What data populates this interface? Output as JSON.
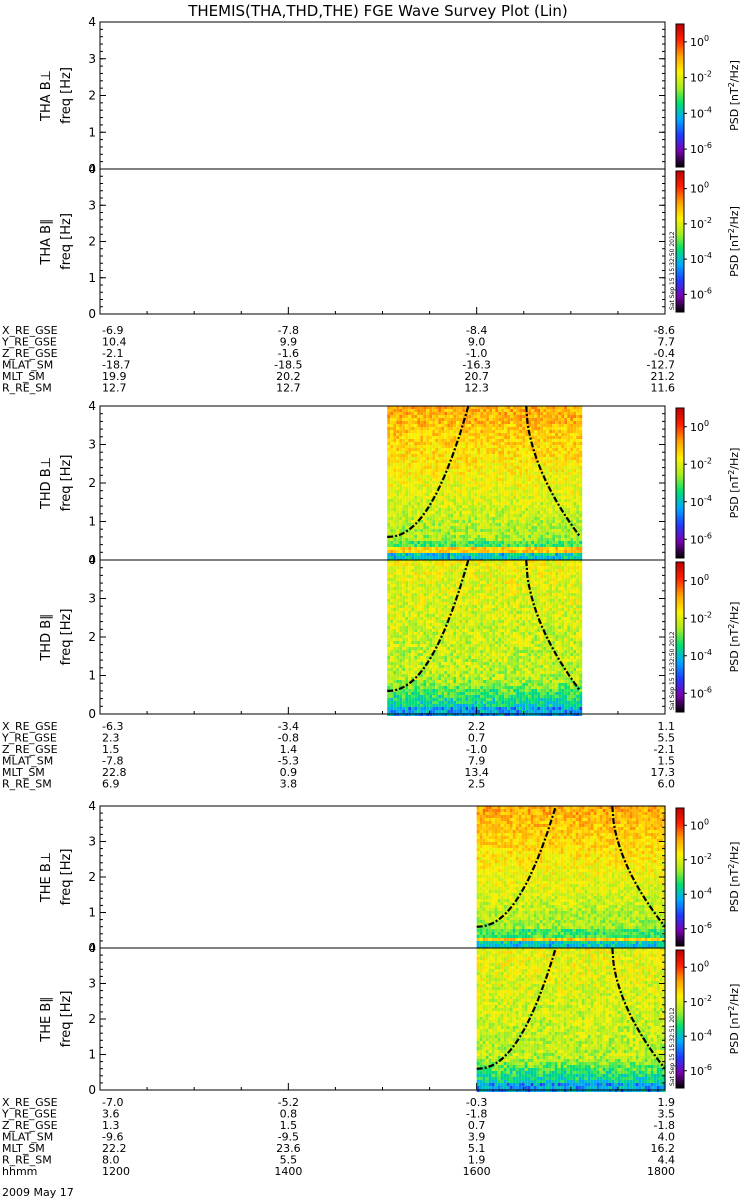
{
  "title": "THEMIS(THA,THD,THE) FGE Wave Survey Plot (Lin)",
  "chart_data": {
    "type": "heatmap",
    "title": "THEMIS(THA,THD,THE) FGE Wave Survey Plot (Lin)",
    "x_axis": {
      "label": "hhmm",
      "ticks": [
        "1200",
        "1400",
        "1600",
        "1800"
      ],
      "date": "2009 May 17"
    },
    "y_axis": {
      "label": "freq [Hz]",
      "ticks": [
        "0",
        "1",
        "2",
        "3",
        "4"
      ],
      "range": [
        0,
        4
      ]
    },
    "colorbar": {
      "label": "PSD [nT²/Hz]",
      "ticks": [
        "10^-6",
        "10^-4",
        "10^-2",
        "10^0"
      ],
      "range_exp": [
        -7,
        1
      ],
      "colors": [
        "#000000",
        "#7a00b0",
        "#1f3cff",
        "#00a8ff",
        "#00e070",
        "#a8ee20",
        "#fff000",
        "#ffa000",
        "#ff2000",
        "#c00000"
      ]
    },
    "panels": [
      {
        "name": "THA B⊥",
        "ylabel": "freq [Hz]",
        "has_data": false
      },
      {
        "name": "THA B∥",
        "ylabel": "freq [Hz]",
        "has_data": false,
        "stamp": "Sat Sep 15 15:32:50 2012"
      },
      {
        "name": "THD B⊥",
        "ylabel": "freq [Hz]",
        "has_data": true,
        "data_range": [
          1505,
          1710
        ],
        "spectrum": "perp"
      },
      {
        "name": "THD B∥",
        "ylabel": "freq [Hz]",
        "has_data": true,
        "data_range": [
          1505,
          1710
        ],
        "spectrum": "par",
        "stamp": "Sat Sep 15 15:32:50 2012"
      },
      {
        "name": "THE B⊥",
        "ylabel": "freq [Hz]",
        "has_data": true,
        "data_range": [
          1600,
          1800
        ],
        "spectrum": "perp"
      },
      {
        "name": "THE B∥",
        "ylabel": "freq [Hz]",
        "has_data": true,
        "data_range": [
          1600,
          1800
        ],
        "spectrum": "par",
        "stamp": "Sat Sep 15 15:32:51 2012"
      }
    ],
    "ephemeris": [
      {
        "probe": "THA",
        "rows": [
          {
            "label": "X_RE_GSE",
            "values": [
              "-6.9",
              "-7.8",
              "-8.4",
              "-8.6"
            ]
          },
          {
            "label": "Y_RE_GSE",
            "values": [
              "10.4",
              "9.9",
              "9.0",
              "7.7"
            ]
          },
          {
            "label": "Z_RE_GSE",
            "values": [
              "-2.1",
              "-1.6",
              "-1.0",
              "-0.4"
            ]
          },
          {
            "label": "MLAT_SM",
            "values": [
              "-18.7",
              "-18.5",
              "-16.3",
              "-12.7"
            ]
          },
          {
            "label": "MLT_SM",
            "values": [
              "19.9",
              "20.2",
              "20.7",
              "21.2"
            ]
          },
          {
            "label": "R_RE_SM",
            "values": [
              "12.7",
              "12.7",
              "12.3",
              "11.6"
            ]
          }
        ]
      },
      {
        "probe": "THD",
        "rows": [
          {
            "label": "X_RE_GSE",
            "values": [
              "-6.3",
              "-3.4",
              "2.2",
              "1.1"
            ]
          },
          {
            "label": "Y_RE_GSE",
            "values": [
              "2.3",
              "-0.8",
              "0.7",
              "5.5"
            ]
          },
          {
            "label": "Z_RE_GSE",
            "values": [
              "1.5",
              "1.4",
              "-1.0",
              "-2.1"
            ]
          },
          {
            "label": "MLAT_SM",
            "values": [
              "-7.8",
              "-5.3",
              "7.9",
              "1.5"
            ]
          },
          {
            "label": "MLT_SM",
            "values": [
              "22.8",
              "0.9",
              "13.4",
              "17.3"
            ]
          },
          {
            "label": "R_RE_SM",
            "values": [
              "6.9",
              "3.8",
              "2.5",
              "6.0"
            ]
          }
        ]
      },
      {
        "probe": "THE",
        "rows": [
          {
            "label": "X_RE_GSE",
            "values": [
              "-7.0",
              "-5.2",
              "-0.3",
              "1.9"
            ]
          },
          {
            "label": "Y_RE_GSE",
            "values": [
              "3.6",
              "0.8",
              "-1.8",
              "3.5"
            ]
          },
          {
            "label": "Z_RE_GSE",
            "values": [
              "1.3",
              "1.5",
              "0.7",
              "-1.8"
            ]
          },
          {
            "label": "MLAT_SM",
            "values": [
              "-9.6",
              "-9.5",
              "3.9",
              "4.0"
            ]
          },
          {
            "label": "MLT_SM",
            "values": [
              "22.2",
              "23.6",
              "5.1",
              "16.2"
            ]
          },
          {
            "label": "R_RE_SM",
            "values": [
              "8.0",
              "5.5",
              "1.9",
              "4.4"
            ]
          },
          {
            "label": "hhmm",
            "values": [
              "1200",
              "1400",
              "1600",
              "1800"
            ]
          }
        ]
      }
    ],
    "date_label": "2009 May 17"
  }
}
